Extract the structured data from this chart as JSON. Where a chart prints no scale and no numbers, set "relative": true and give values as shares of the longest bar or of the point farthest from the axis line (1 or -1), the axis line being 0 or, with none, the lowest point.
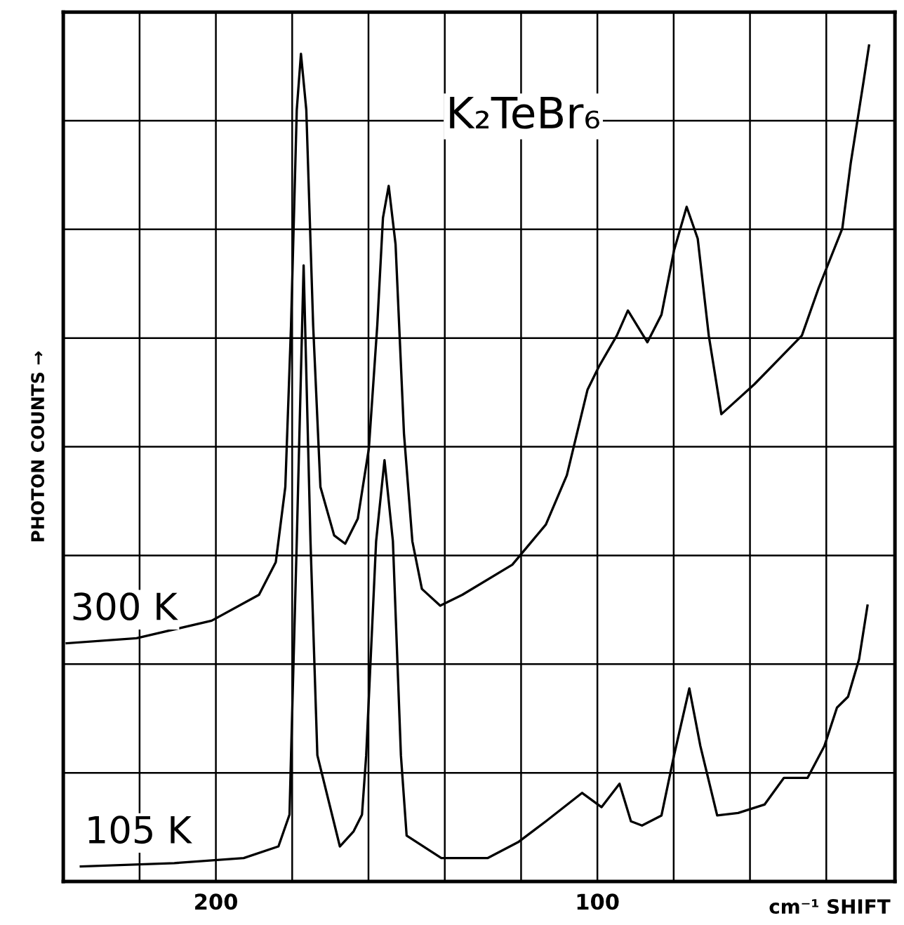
{
  "chart_data": {
    "type": "line",
    "relative": true,
    "xlabel": "cm⁻¹ SHIFT",
    "ylabel": "PHOTON COUNTS →",
    "annotations": [
      "K₂TeBr₆"
    ],
    "xlim": [
      240,
      22
    ],
    "xticks": [
      {
        "value": 220,
        "label": null
      },
      200,
      {
        "value": 180,
        "label": null
      },
      {
        "value": 160,
        "label": null
      },
      {
        "value": 140,
        "label": null
      },
      {
        "value": 120,
        "label": null
      },
      100,
      {
        "value": 80,
        "label": null
      },
      {
        "value": 60,
        "label": null
      },
      {
        "value": 40,
        "label": null
      }
    ],
    "grid": true,
    "tick_labels": "x",
    "marker": "none",
    "line_style": "solid",
    "legend": false,
    "series": [
      {
        "name": "300 K",
        "color": "#000000",
        "x": [
          239.1,
          220.8,
          201.1,
          188.7,
          184.3,
          181.8,
          180.3,
          178.8,
          177.7,
          176.3,
          174.5,
          172.6,
          169.0,
          166.1,
          162.8,
          159.9,
          157.7,
          156.2,
          154.7,
          152.9,
          150.7,
          148.5,
          146.0,
          141.2,
          135.4,
          122.3,
          113.5,
          108.0,
          102.6,
          99.6,
          94.9,
          92.0,
          86.9,
          83.2,
          79.9,
          76.6,
          73.7,
          70.8,
          67.5,
          58.8,
          46.4,
          42.0,
          35.8,
          33.6,
          31.4,
          30.3,
          28.8
        ],
        "values": [
          0.285,
          0.291,
          0.312,
          0.343,
          0.382,
          0.472,
          0.665,
          0.923,
          0.99,
          0.923,
          0.665,
          0.472,
          0.414,
          0.404,
          0.434,
          0.518,
          0.665,
          0.794,
          0.832,
          0.762,
          0.536,
          0.407,
          0.35,
          0.33,
          0.343,
          0.379,
          0.427,
          0.486,
          0.588,
          0.616,
          0.653,
          0.683,
          0.645,
          0.678,
          0.755,
          0.807,
          0.769,
          0.653,
          0.559,
          0.595,
          0.653,
          0.71,
          0.781,
          0.859,
          0.923,
          0.955,
          1.0
        ]
      },
      {
        "name": "105 K",
        "color": "#000000",
        "x": [
          235.4,
          210.9,
          192.7,
          183.6,
          180.7,
          180.3,
          178.8,
          177.0,
          175.2,
          173.4,
          167.5,
          163.9,
          161.7,
          160.6,
          158.0,
          155.8,
          153.6,
          151.5,
          150.0,
          140.9,
          128.8,
          120.8,
          113.5,
          104.0,
          98.9,
          94.2,
          91.2,
          88.3,
          83.2,
          79.9,
          75.9,
          73.0,
          68.6,
          63.1,
          56.2,
          51.1,
          44.9,
          40.5,
          37.2,
          34.3,
          31.4,
          29.2
        ],
        "values": [
          0.018,
          0.022,
          0.028,
          0.042,
          0.08,
          0.151,
          0.407,
          0.737,
          0.407,
          0.151,
          0.042,
          0.06,
          0.08,
          0.151,
          0.407,
          0.504,
          0.407,
          0.151,
          0.055,
          0.028,
          0.028,
          0.047,
          0.072,
          0.106,
          0.089,
          0.117,
          0.072,
          0.067,
          0.079,
          0.151,
          0.231,
          0.162,
          0.079,
          0.082,
          0.092,
          0.124,
          0.124,
          0.162,
          0.208,
          0.221,
          0.266,
          0.33
        ]
      }
    ]
  }
}
